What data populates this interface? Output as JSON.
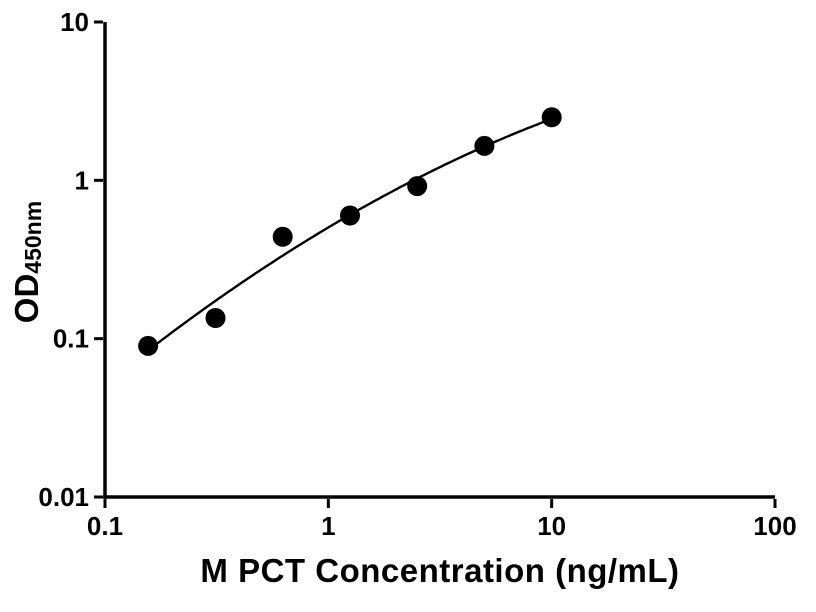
{
  "figure": {
    "background": "#ffffff",
    "axis_color": "#000000"
  },
  "chart_data": {
    "type": "scatter",
    "title": "",
    "xlabel": "M PCT Concentration (ng/mL)",
    "ylabel": "OD450nm",
    "ylabel_main": "OD",
    "ylabel_sub": "450nm",
    "xscale": "log",
    "yscale": "log",
    "xlim": [
      0.1,
      100
    ],
    "ylim": [
      0.01,
      10
    ],
    "x_ticks": [
      0.1,
      1,
      10,
      100
    ],
    "x_tick_labels": [
      "0.1",
      "1",
      "10",
      "100"
    ],
    "y_ticks": [
      0.01,
      0.1,
      1,
      10
    ],
    "y_tick_labels": [
      "0.01",
      "0.1",
      "1",
      "10"
    ],
    "grid": false,
    "legend": false,
    "axis_color": "#000000",
    "series": [
      {
        "x": [
          0.156,
          0.3125,
          0.625,
          1.25,
          2.5,
          5,
          10
        ],
        "y": [
          0.09,
          0.135,
          0.44,
          0.6,
          0.92,
          1.65,
          2.5
        ],
        "marker": "circle",
        "marker_color": "#000000",
        "line_color": "#000000",
        "fit": "smooth fitted curve (quadratic in log-log space)"
      }
    ]
  }
}
